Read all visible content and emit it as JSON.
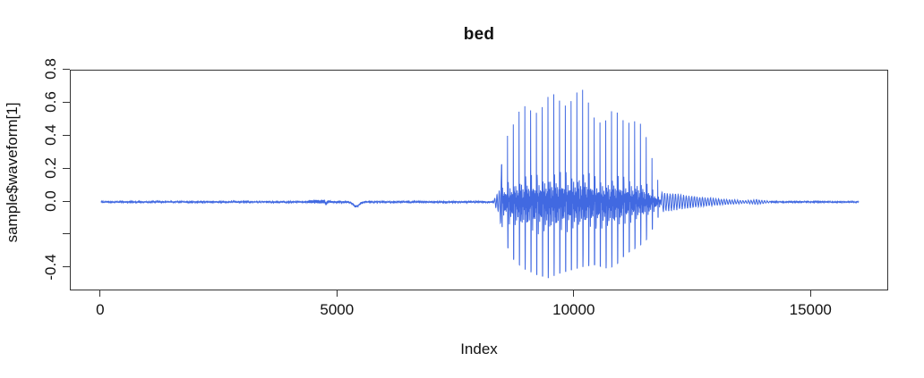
{
  "chart_data": {
    "type": "line",
    "title": "bed",
    "xlabel": "Index",
    "ylabel": "sample$waveform[1]",
    "description": "Audio waveform of the spoken word 'bed': near-silence until ~index 8300, a voiced burst from ~8450 to ~11830 peaking at +0.75 / -0.47, a decaying ripple tail to ~14100, then silence to index 16000.",
    "n_samples": 16000,
    "x_ticks": [
      0,
      5000,
      10000,
      15000
    ],
    "y_ticks": [
      {
        "v": 0.8,
        "label": "0.8"
      },
      {
        "v": 0.6,
        "label": "0.6"
      },
      {
        "v": 0.4,
        "label": "0.4"
      },
      {
        "v": 0.2,
        "label": "0.2"
      },
      {
        "v": 0.0,
        "label": "0.0"
      },
      {
        "v": -0.2,
        "label": ""
      },
      {
        "v": -0.4,
        "label": "-0.4"
      }
    ],
    "xlim": [
      -640,
      16640
    ],
    "ylim": [
      -0.542,
      0.797
    ],
    "grid": false,
    "legend": null,
    "colors": {
      "line": "#4169E1",
      "axis": "#333333",
      "text": "#111111",
      "background": "#ffffff"
    },
    "pitch_period_samples": 122,
    "onset_segment": [
      8300,
      8460
    ],
    "voiced_segment": [
      8460,
      11830
    ],
    "tail_segment": [
      11830,
      14150
    ],
    "tail_ripple_period_samples": 57,
    "pre_events": {
      "tick_blip": {
        "center": 4750,
        "sigma": 18,
        "depth": -0.013
      },
      "smooth_dip": {
        "center": 5390,
        "sigma": 90,
        "depth": -0.026
      }
    },
    "envelope_hi_lo": [
      [
        1,
        0.004,
        -0.004
      ],
      [
        4300,
        0.004,
        -0.004
      ],
      [
        4450,
        0.012,
        -0.009
      ],
      [
        4700,
        0.014,
        -0.009
      ],
      [
        4900,
        0.005,
        -0.005
      ],
      [
        5600,
        0.004,
        -0.004
      ],
      [
        8280,
        0.005,
        -0.005
      ],
      [
        8340,
        0.04,
        -0.04
      ],
      [
        8420,
        0.08,
        -0.07
      ],
      [
        8500,
        0.46,
        -0.2
      ],
      [
        8650,
        0.54,
        -0.33
      ],
      [
        8900,
        0.63,
        -0.4
      ],
      [
        9200,
        0.68,
        -0.44
      ],
      [
        9450,
        0.71,
        -0.46
      ],
      [
        9700,
        0.72,
        -0.43
      ],
      [
        9950,
        0.75,
        -0.41
      ],
      [
        10200,
        0.74,
        -0.39
      ],
      [
        10450,
        0.62,
        -0.38
      ],
      [
        10650,
        0.56,
        -0.4
      ],
      [
        10850,
        0.62,
        -0.39
      ],
      [
        11100,
        0.61,
        -0.31
      ],
      [
        11350,
        0.54,
        -0.27
      ],
      [
        11550,
        0.42,
        -0.22
      ],
      [
        11700,
        0.25,
        -0.13
      ],
      [
        11830,
        0.055,
        -0.055
      ],
      [
        12100,
        0.045,
        -0.045
      ],
      [
        12600,
        0.028,
        -0.028
      ],
      [
        13100,
        0.016,
        -0.016
      ],
      [
        13600,
        0.007,
        -0.007
      ],
      [
        13850,
        0.013,
        -0.013
      ],
      [
        14150,
        0.003,
        -0.003
      ],
      [
        16000,
        0.0025,
        -0.0025
      ]
    ]
  }
}
